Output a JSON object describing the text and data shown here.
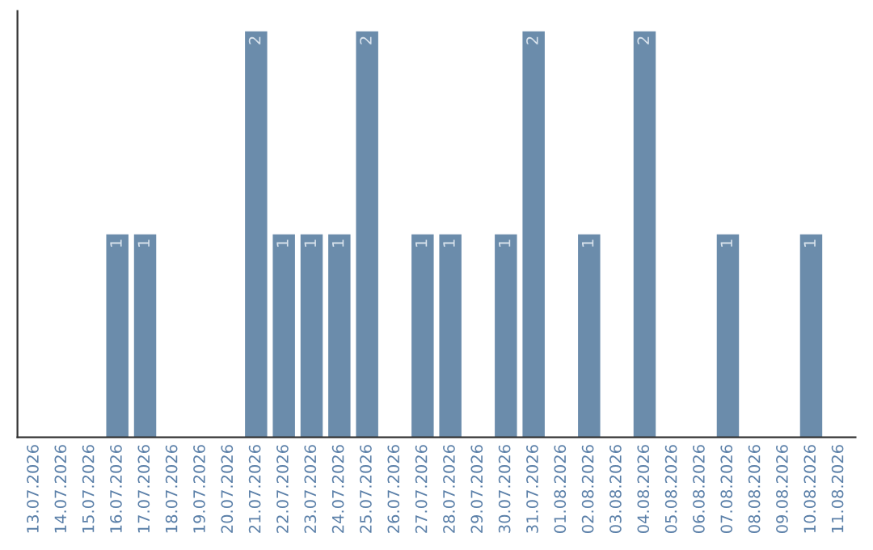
{
  "chart_data": {
    "type": "bar",
    "categories": [
      "13.07.2026",
      "14.07.2026",
      "15.07.2026",
      "16.07.2026",
      "17.07.2026",
      "18.07.2026",
      "19.07.2026",
      "20.07.2026",
      "21.07.2026",
      "22.07.2026",
      "23.07.2026",
      "24.07.2026",
      "25.07.2026",
      "26.07.2026",
      "27.07.2026",
      "28.07.2026",
      "29.07.2026",
      "30.07.2026",
      "31.07.2026",
      "01.08.2026",
      "02.08.2026",
      "03.08.2026",
      "04.08.2026",
      "05.08.2026",
      "06.08.2026",
      "07.08.2026",
      "08.08.2026",
      "09.08.2026",
      "10.08.2026",
      "11.08.2026"
    ],
    "values": [
      0,
      0,
      0,
      1,
      1,
      0,
      0,
      0,
      2,
      1,
      1,
      1,
      2,
      0,
      1,
      1,
      0,
      1,
      2,
      0,
      1,
      0,
      2,
      0,
      0,
      1,
      0,
      0,
      1,
      0
    ],
    "value_labels": [
      null,
      null,
      null,
      "1",
      "1",
      null,
      null,
      null,
      "2",
      "1",
      "1",
      "1",
      "2",
      null,
      "1",
      "1",
      null,
      "1",
      "2",
      null,
      "1",
      null,
      "2",
      null,
      null,
      "1",
      null,
      null,
      "1",
      null
    ],
    "color": "#6b8cab",
    "ylim": [
      0,
      2.1
    ],
    "tick_labels": "x",
    "grid": false,
    "legend": false
  }
}
